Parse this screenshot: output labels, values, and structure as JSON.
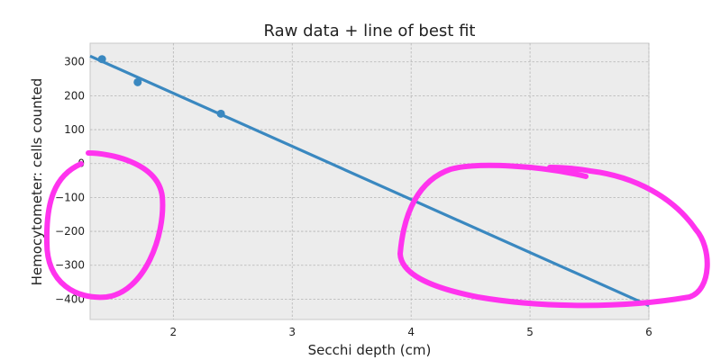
{
  "chart_data": {
    "type": "scatter",
    "title": "Raw data + line of best fit",
    "xlabel": "Secchi depth (cm)",
    "ylabel": "Hemocytometer: cells counted",
    "xlim": [
      1.3,
      6.0
    ],
    "ylim": [
      -460,
      355
    ],
    "xticks": [
      2,
      3,
      4,
      5,
      6
    ],
    "yticks": [
      -400,
      -300,
      -200,
      -100,
      0,
      100,
      200,
      300
    ],
    "grid": true,
    "style": "gray background, dashed gridlines",
    "series": [
      {
        "kind": "points",
        "color": "#3a88c0",
        "x": [
          1.4,
          1.7,
          2.4
        ],
        "y": [
          308,
          240,
          147
        ]
      },
      {
        "kind": "fit-line",
        "color": "#3a88c0",
        "x": [
          1.3,
          6.0
        ],
        "y": [
          317,
          -419
        ]
      }
    ],
    "annotations": [
      {
        "kind": "hand-drawn-loop",
        "color": "#ff33ee",
        "around": "left region below y=0"
      },
      {
        "kind": "hand-drawn-loop",
        "color": "#ff33ee",
        "around": "right region x≈4–6, y≈0 to -420"
      }
    ]
  }
}
